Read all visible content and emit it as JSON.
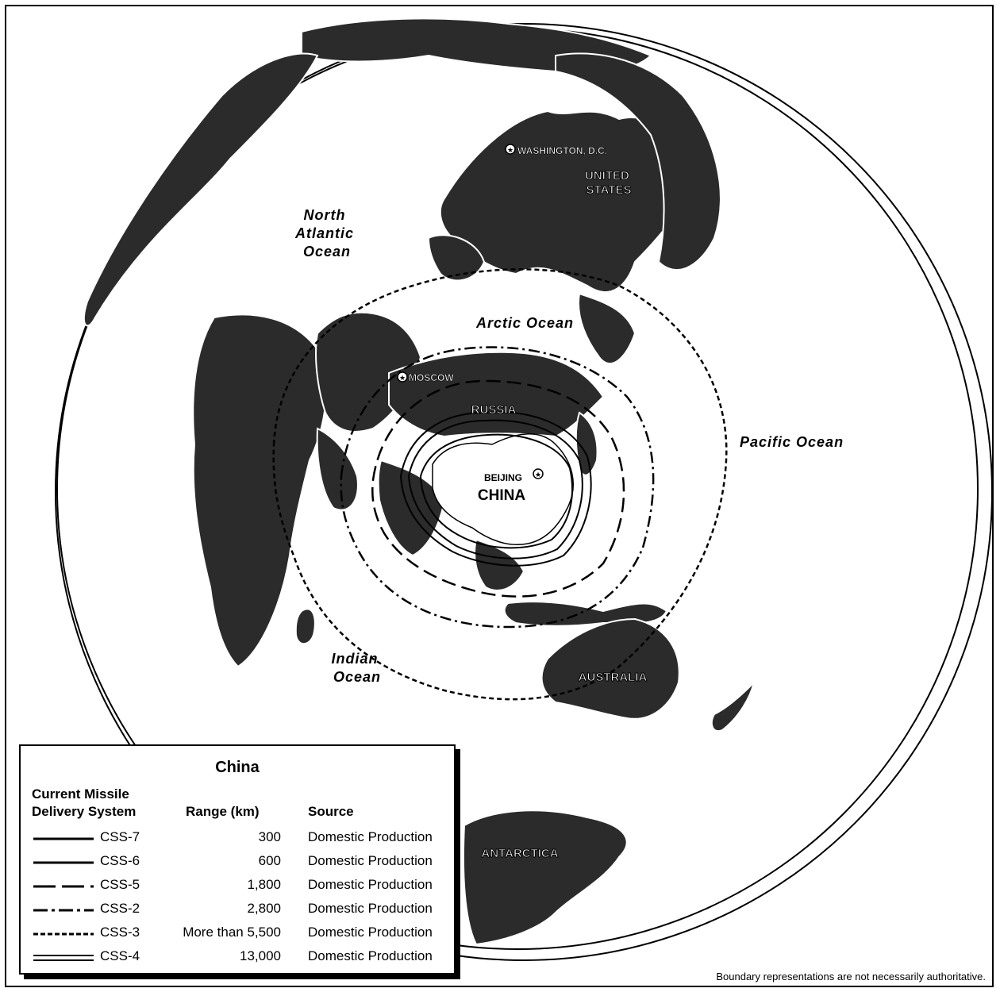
{
  "map": {
    "ocean_labels": {
      "north_atlantic": [
        "North",
        "Atlantic",
        "Ocean"
      ],
      "arctic": "Arctic Ocean",
      "pacific": "Pacific Ocean",
      "indian": [
        "Indian",
        "Ocean"
      ]
    },
    "country_labels": {
      "united_states": [
        "UNITED",
        "STATES"
      ],
      "russia": "RUSSIA",
      "china": "CHINA",
      "australia": "AUSTRALIA",
      "antarctica": "ANTARCTICA"
    },
    "city_labels": {
      "washington": "WASHINGTON, D.C.",
      "moscow": "MOSCOW",
      "beijing": "BEIJING"
    }
  },
  "legend": {
    "title": "China",
    "col_system": [
      "Current Missile",
      "Delivery System"
    ],
    "col_range": "Range (km)",
    "col_source": "Source",
    "rows": [
      {
        "name": "CSS-7",
        "range": "300",
        "source": "Domestic Production",
        "line": "solid"
      },
      {
        "name": "CSS-6",
        "range": "600",
        "source": "Domestic Production",
        "line": "solid"
      },
      {
        "name": "CSS-5",
        "range": "1,800",
        "source": "Domestic Production",
        "line": "longdash"
      },
      {
        "name": "CSS-2",
        "range": "2,800",
        "source": "Domestic Production",
        "line": "dashdot"
      },
      {
        "name": "CSS-3",
        "range": "More than 5,500",
        "source": "Domestic Production",
        "line": "shortdash"
      },
      {
        "name": "CSS-4",
        "range": "13,000",
        "source": "Domestic Production",
        "line": "double"
      }
    ]
  },
  "footnote": "Boundary representations are not necessarily authoritative."
}
